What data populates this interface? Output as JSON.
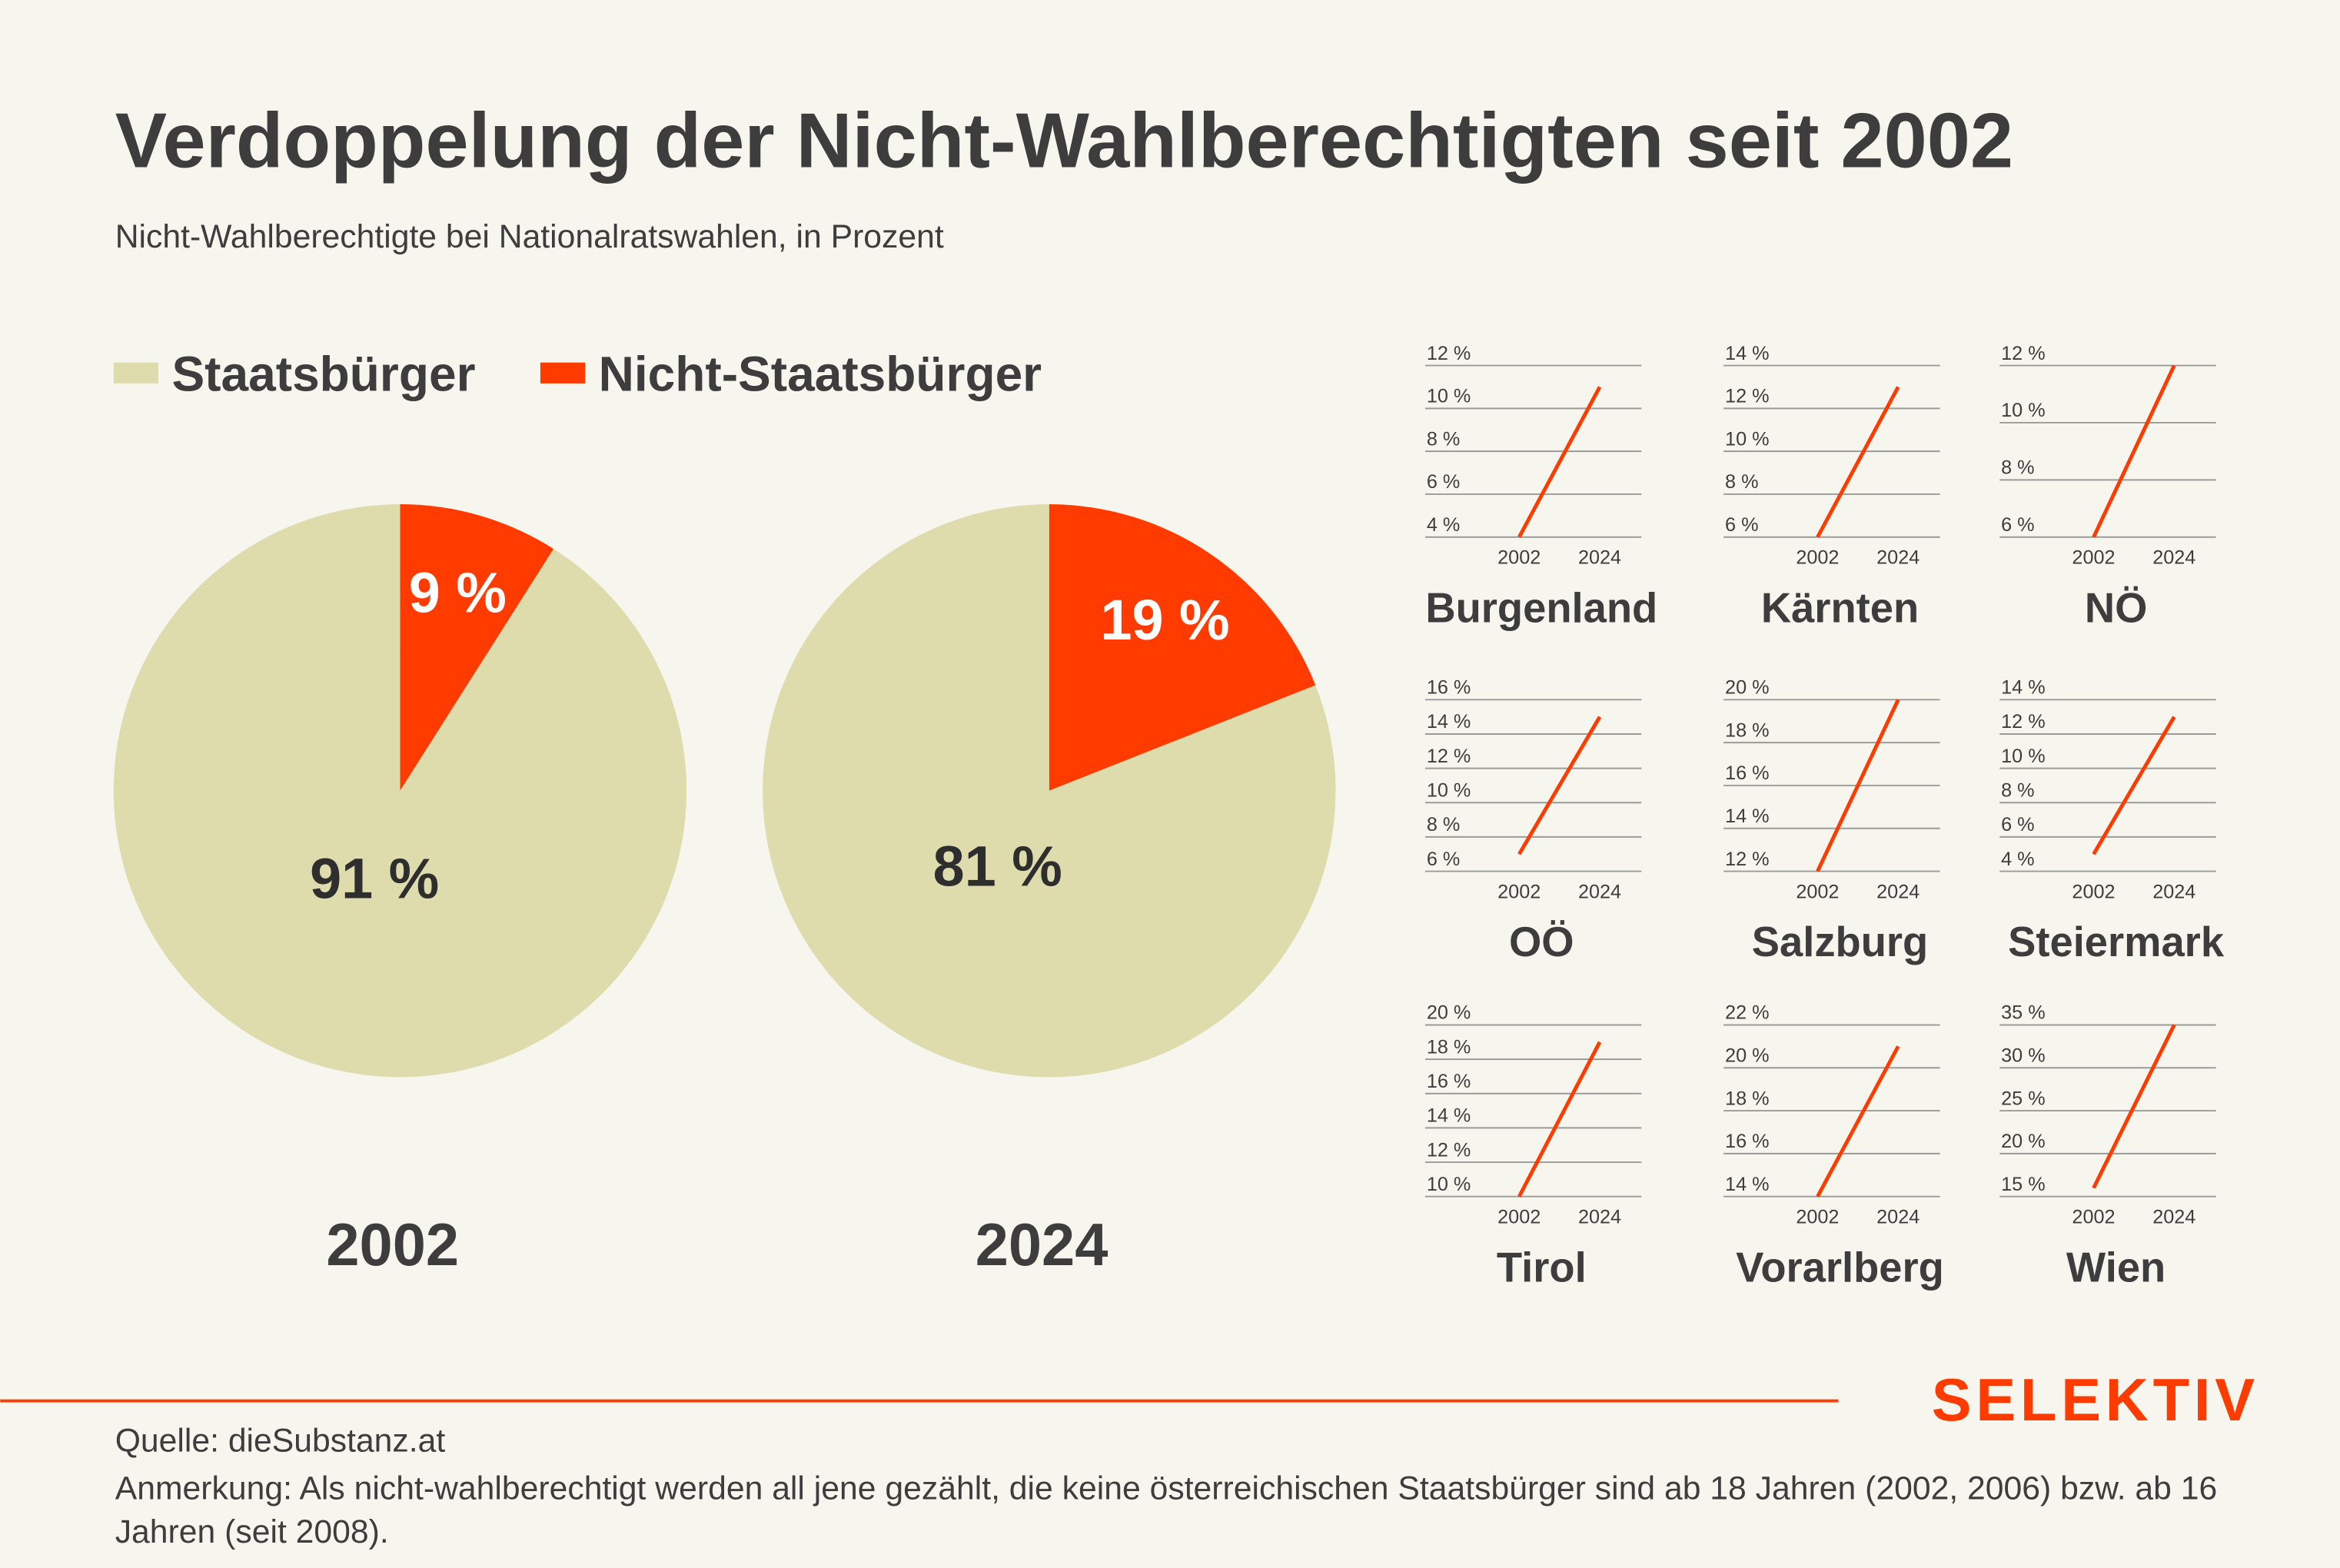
{
  "header": {
    "title": "Verdoppelung der Nicht-Wahlberechtigten seit 2002",
    "subtitle": "Nicht-Wahlberechtigte bei Nationalratswahlen, in Prozent"
  },
  "chart_data": [
    {
      "type": "pie",
      "categories": [
        "Staatsbürger",
        "Nicht-Staatsbürger"
      ],
      "colors": [
        "#dedbad",
        "#ff3b00"
      ],
      "pies": [
        {
          "label": "2002",
          "values": [
            91,
            9
          ],
          "value_labels": [
            "91 %",
            "9 %"
          ]
        },
        {
          "label": "2024",
          "values": [
            81,
            19
          ],
          "value_labels": [
            "81 %",
            "19 %"
          ]
        }
      ]
    },
    {
      "type": "line",
      "title": "Burgenland",
      "x": [
        "2002",
        "2024"
      ],
      "values": [
        4,
        11
      ],
      "color": "#ff3b00",
      "ylim": [
        4,
        12
      ],
      "yticks": [
        {
          "value": 4,
          "label": "4 %"
        },
        {
          "value": 6,
          "label": "6 %"
        },
        {
          "value": 8,
          "label": "8 %"
        },
        {
          "value": 10,
          "label": "10 %"
        },
        {
          "value": 12,
          "label": "12 %"
        }
      ],
      "grid": true
    },
    {
      "type": "line",
      "title": "Kärnten",
      "x": [
        "2002",
        "2024"
      ],
      "values": [
        6,
        13
      ],
      "color": "#ff3b00",
      "ylim": [
        6,
        14
      ],
      "yticks": [
        {
          "value": 6,
          "label": "6 %"
        },
        {
          "value": 8,
          "label": "8 %"
        },
        {
          "value": 10,
          "label": "10 %"
        },
        {
          "value": 12,
          "label": "12 %"
        },
        {
          "value": 14,
          "label": "14 %"
        }
      ],
      "grid": true
    },
    {
      "type": "line",
      "title": "NÖ",
      "x": [
        "2002",
        "2024"
      ],
      "values": [
        6,
        12
      ],
      "color": "#ff3b00",
      "ylim": [
        6,
        12
      ],
      "yticks": [
        {
          "value": 6,
          "label": "6 %"
        },
        {
          "value": 8,
          "label": "8 %"
        },
        {
          "value": 10,
          "label": "10 %"
        },
        {
          "value": 12,
          "label": "12 %"
        }
      ],
      "grid": true
    },
    {
      "type": "line",
      "title": "OÖ",
      "x": [
        "2002",
        "2024"
      ],
      "values": [
        7,
        15
      ],
      "color": "#ff3b00",
      "ylim": [
        6,
        16
      ],
      "yticks": [
        {
          "value": 6,
          "label": "6 %"
        },
        {
          "value": 8,
          "label": "8 %"
        },
        {
          "value": 10,
          "label": "10 %"
        },
        {
          "value": 12,
          "label": "12 %"
        },
        {
          "value": 14,
          "label": "14 %"
        },
        {
          "value": 16,
          "label": "16 %"
        }
      ],
      "grid": true
    },
    {
      "type": "line",
      "title": "Salzburg",
      "x": [
        "2002",
        "2024"
      ],
      "values": [
        12,
        20
      ],
      "color": "#ff3b00",
      "ylim": [
        12,
        20
      ],
      "yticks": [
        {
          "value": 12,
          "label": "12 %"
        },
        {
          "value": 14,
          "label": "14 %"
        },
        {
          "value": 16,
          "label": "16 %"
        },
        {
          "value": 18,
          "label": "18 %"
        },
        {
          "value": 20,
          "label": "20 %"
        }
      ],
      "grid": true
    },
    {
      "type": "line",
      "title": "Steiermark",
      "x": [
        "2002",
        "2024"
      ],
      "values": [
        5,
        13
      ],
      "color": "#ff3b00",
      "ylim": [
        4,
        14
      ],
      "yticks": [
        {
          "value": 4,
          "label": "4 %"
        },
        {
          "value": 6,
          "label": "6 %"
        },
        {
          "value": 8,
          "label": "8 %"
        },
        {
          "value": 10,
          "label": "10 %"
        },
        {
          "value": 12,
          "label": "12 %"
        },
        {
          "value": 14,
          "label": "14 %"
        }
      ],
      "grid": true
    },
    {
      "type": "line",
      "title": "Tirol",
      "x": [
        "2002",
        "2024"
      ],
      "values": [
        10,
        19
      ],
      "color": "#ff3b00",
      "ylim": [
        10,
        20
      ],
      "yticks": [
        {
          "value": 10,
          "label": "10 %"
        },
        {
          "value": 12,
          "label": "12 %"
        },
        {
          "value": 14,
          "label": "14 %"
        },
        {
          "value": 16,
          "label": "16 %"
        },
        {
          "value": 18,
          "label": "18 %"
        },
        {
          "value": 20,
          "label": "20 %"
        }
      ],
      "grid": true
    },
    {
      "type": "line",
      "title": "Vorarlberg",
      "x": [
        "2002",
        "2024"
      ],
      "values": [
        14,
        21
      ],
      "color": "#ff3b00",
      "ylim": [
        14,
        22
      ],
      "yticks": [
        {
          "value": 14,
          "label": "14 %"
        },
        {
          "value": 16,
          "label": "16 %"
        },
        {
          "value": 18,
          "label": "18 %"
        },
        {
          "value": 20,
          "label": "20 %"
        },
        {
          "value": 22,
          "label": "22 %"
        }
      ],
      "grid": true
    },
    {
      "type": "line",
      "title": "Wien",
      "x": [
        "2002",
        "2024"
      ],
      "values": [
        16,
        35
      ],
      "color": "#ff3b00",
      "ylim": [
        15,
        35
      ],
      "yticks": [
        {
          "value": 15,
          "label": "15 %"
        },
        {
          "value": 20,
          "label": "20 %"
        },
        {
          "value": 25,
          "label": "25 %"
        },
        {
          "value": 30,
          "label": "30 %"
        },
        {
          "value": 35,
          "label": "35 %"
        }
      ],
      "grid": true
    }
  ],
  "footer": {
    "brand": "SELEKTIV",
    "source": "Quelle: dieSubstanz.at",
    "note": "Anmerkung: Als nicht-wahlberechtigt werden all jene gezählt, die keine österreichischen Staatsbürger sind ab 18 Jahren (2002, 2006) bzw. ab 16 Jahren (seit 2008)."
  }
}
